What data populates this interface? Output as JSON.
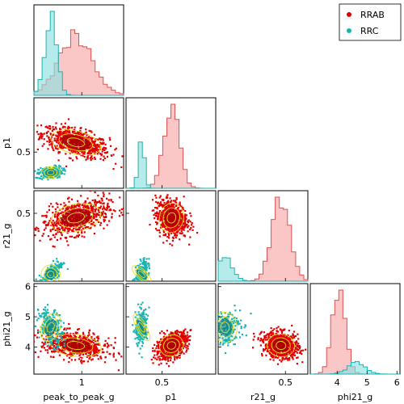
{
  "chart_data": {
    "type": "scatter",
    "title": "",
    "variables": [
      {
        "key": "peak_to_peak_g",
        "label": "peak_to_peak_g",
        "lim": [
          0.6,
          1.35
        ],
        "ticks": [
          1
        ]
      },
      {
        "key": "p1",
        "label": "p1",
        "lim": [
          0.2,
          0.95
        ],
        "ticks": [
          0.5
        ]
      },
      {
        "key": "r21_g",
        "label": "r21_g",
        "lim": [
          0.2,
          0.6
        ],
        "ticks": [
          0.5
        ]
      },
      {
        "key": "phi21_g",
        "label": "phi21_g",
        "lim": [
          3.1,
          6.1
        ],
        "ticks": [
          4,
          5,
          6
        ]
      }
    ],
    "series": [
      {
        "name": "RRAB",
        "color": "#e00000",
        "hist_color": "#f7a8a8",
        "hist_edge": "#e05050",
        "mean": {
          "peak_to_peak_g": 0.95,
          "p1": 0.58,
          "r21_g": 0.48,
          "phi21_g": 4.05
        },
        "sd": {
          "peak_to_peak_g": 0.14,
          "p1": 0.065,
          "r21_g": 0.04,
          "phi21_g": 0.22
        }
      },
      {
        "name": "RRC",
        "color": "#1ab3b3",
        "hist_color": "#8fe0e0",
        "hist_edge": "#1ab3b3",
        "mean": {
          "peak_to_peak_g": 0.74,
          "p1": 0.33,
          "r21_g": 0.23,
          "phi21_g": 4.65
        },
        "sd": {
          "peak_to_peak_g": 0.05,
          "p1": 0.025,
          "r21_g": 0.035,
          "phi21_g": 0.3
        }
      }
    ],
    "legend": {
      "placement": "top-right",
      "entries": [
        "RRAB",
        "RRC"
      ]
    },
    "contour_color": "#e8e020",
    "grid": false
  }
}
